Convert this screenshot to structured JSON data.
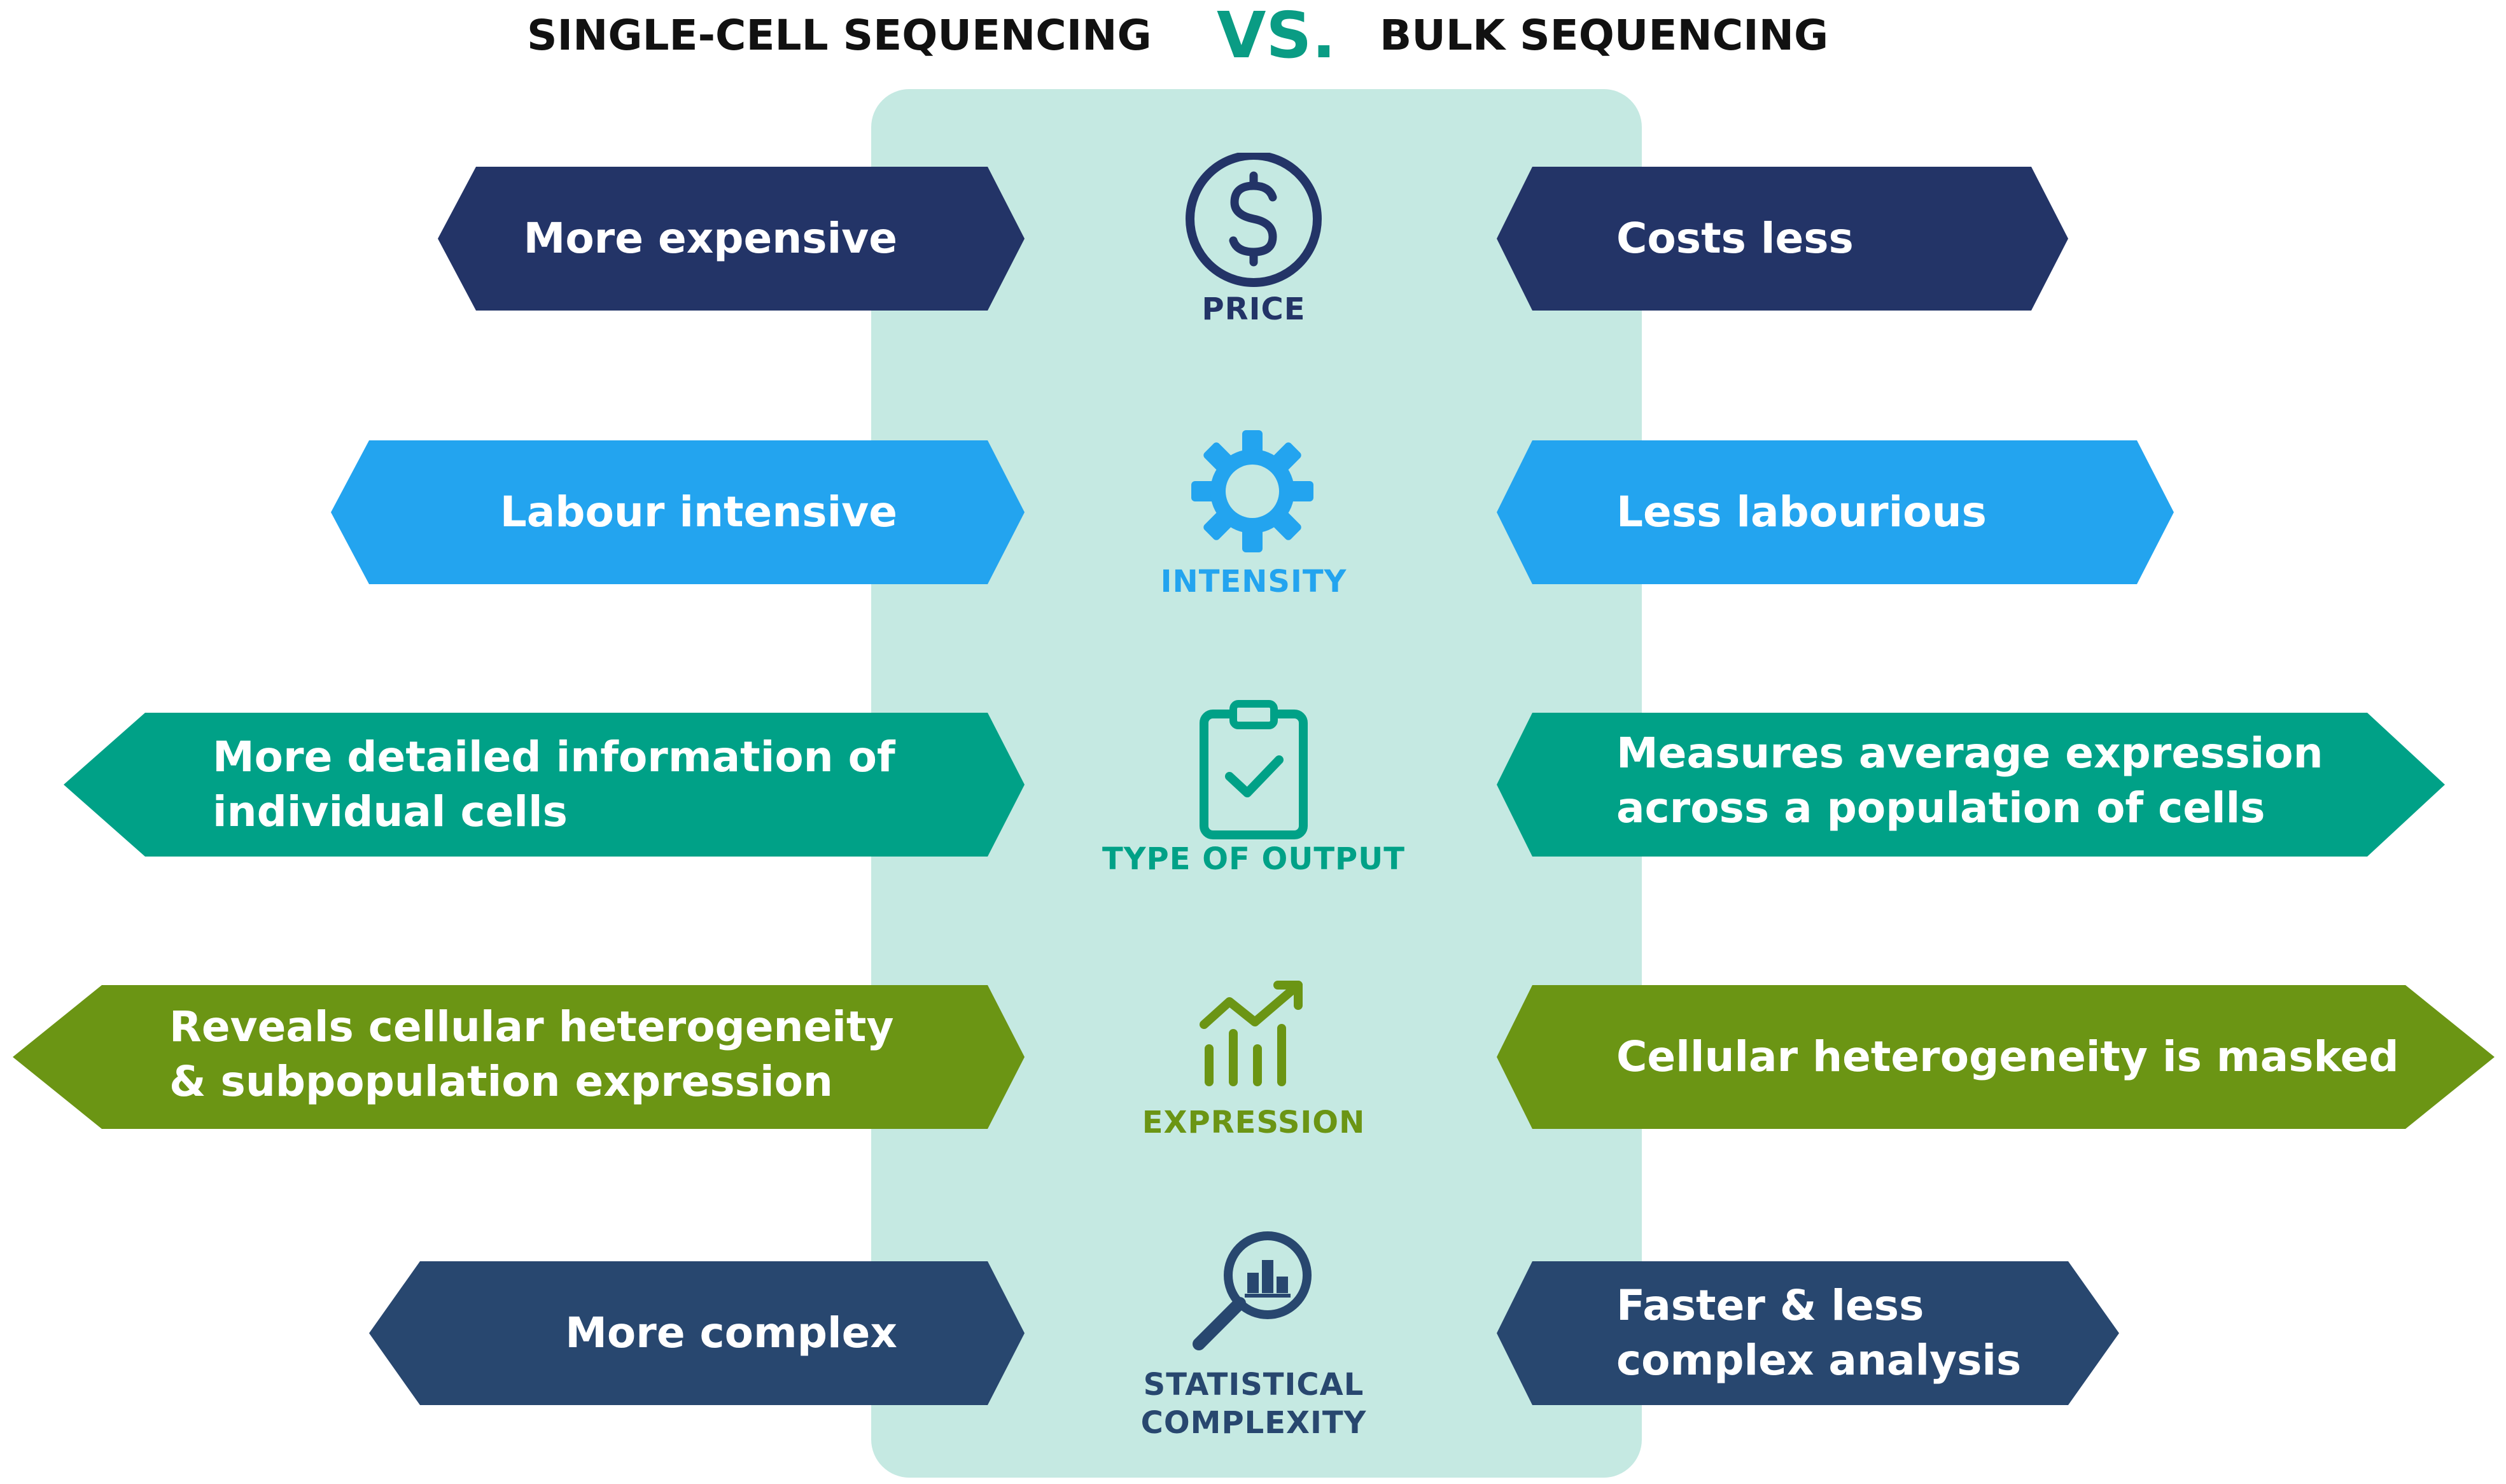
{
  "header": {
    "left_title": "SINGLE-CELL SEQUENCING",
    "vs": "VS.",
    "right_title": "BULK SEQUENCING"
  },
  "colors": {
    "title_vs": "#0a9c84",
    "panel": "#c5e9e2",
    "price": "#233467",
    "intensity": "#23a4ef",
    "output": "#00a187",
    "expression": "#6b9514",
    "complexity": "#28476f"
  },
  "rows": [
    {
      "id": "price",
      "category": "PRICE",
      "icon": "dollar-icon",
      "left_lines": [
        "More expensive"
      ],
      "right_lines": [
        "Costs less"
      ]
    },
    {
      "id": "intensity",
      "category": "INTENSITY",
      "icon": "gear-icon",
      "left_lines": [
        "Labour intensive"
      ],
      "right_lines": [
        "Less labourious"
      ]
    },
    {
      "id": "output",
      "category": "TYPE OF OUTPUT",
      "icon": "clipboard-check-icon",
      "left_lines": [
        "More detailed information of",
        "individual cells"
      ],
      "right_lines": [
        "Measures average expression",
        "across a population of cells"
      ]
    },
    {
      "id": "expression",
      "category": "EXPRESSION",
      "icon": "growth-chart-icon",
      "left_lines": [
        "Reveals cellular heterogeneity",
        "& subpopulation expression"
      ],
      "right_lines": [
        "Cellular heterogeneity is masked"
      ]
    },
    {
      "id": "complexity",
      "category_lines": [
        "STATISTICAL",
        "COMPLEXITY"
      ],
      "icon": "magnifier-chart-icon",
      "left_lines": [
        "More complex"
      ],
      "right_lines": [
        "Faster & less",
        "complex analysis"
      ]
    }
  ]
}
